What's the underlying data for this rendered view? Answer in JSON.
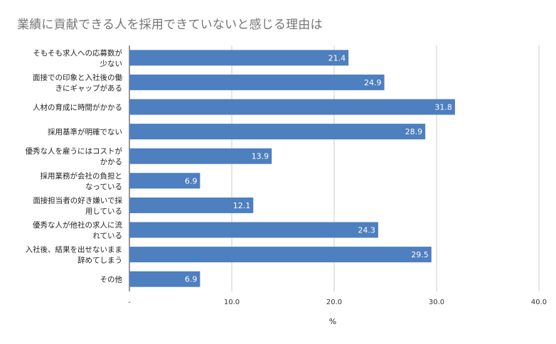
{
  "chart_data": {
    "type": "bar",
    "orientation": "horizontal",
    "title": "業績に貢献できる人を採用できていないと感じる理由は",
    "xlabel": "%",
    "ylabel": "",
    "xlim": [
      0,
      40
    ],
    "x_ticks": [
      "-",
      "10.0",
      "20.0",
      "30.0",
      "40.0"
    ],
    "grid": true,
    "bar_color": "#4e7fbf",
    "categories": [
      [
        "そもそも求人への応募数が",
        "少ない"
      ],
      [
        "面接での印象と入社後の働",
        "きにギャップがある"
      ],
      [
        "人材の育成に時間がかかる"
      ],
      [
        "採用基準が明確でない"
      ],
      [
        "優秀な人を雇うにはコストが",
        "かかる"
      ],
      [
        "採用業務が会社の負担と",
        "なっている"
      ],
      [
        "面接担当者の好き嫌いで採",
        "用している"
      ],
      [
        "優秀な人が他社の求人に流",
        "れている"
      ],
      [
        "入社後、結果を出せないまま",
        "辞めてしまう"
      ],
      [
        "その他"
      ]
    ],
    "values": [
      21.4,
      24.9,
      31.8,
      28.9,
      13.9,
      6.9,
      12.1,
      24.3,
      29.5,
      6.9
    ],
    "value_labels": [
      "21.4",
      "24.9",
      "31.8",
      "28.9",
      "13.9",
      "6.9",
      "12.1",
      "24.3",
      "29.5",
      "6.9"
    ]
  }
}
